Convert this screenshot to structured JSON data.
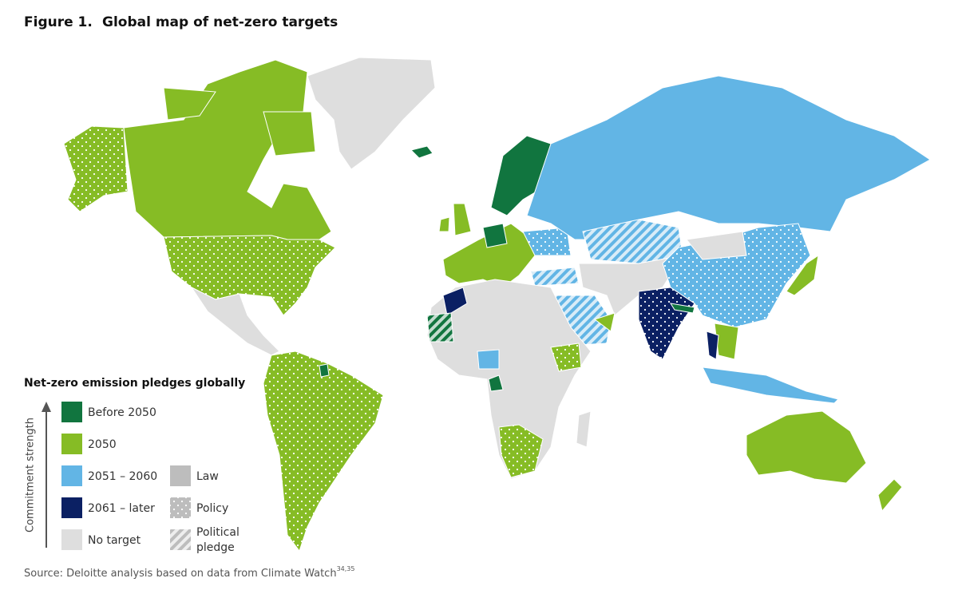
{
  "figure_label": "Figure 1.",
  "title": "Global map of net-zero targets",
  "legend": {
    "title": "Net-zero emission pledges globally",
    "axis_label": "Commitment strength",
    "items": [
      "Before 2050",
      "2050",
      "2051 – 2060",
      "2061 – later",
      "No target"
    ],
    "types": [
      "Law",
      "Policy"
    ],
    "political_pledge": [
      "Political",
      "pledge"
    ]
  },
  "source": {
    "text": "Source: Deloitte analysis based on data from Climate Watch",
    "refs": "34,35"
  }
}
